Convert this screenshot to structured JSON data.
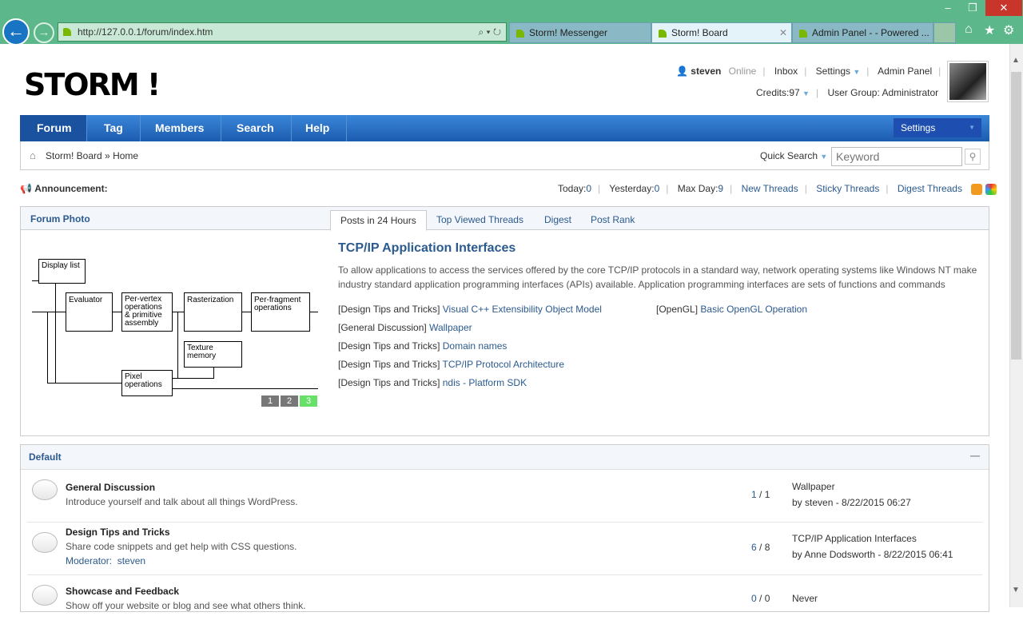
{
  "browser": {
    "url": "http://127.0.0.1/forum/index.htm",
    "tabs": [
      {
        "label": "Storm! Messenger"
      },
      {
        "label": "Storm! Board",
        "active": true
      },
      {
        "label": "Admin Panel - - Powered ..."
      }
    ]
  },
  "site": {
    "logo": "STORM !"
  },
  "user": {
    "name": "steven",
    "status": "Online",
    "inbox": "Inbox",
    "settings": "Settings",
    "admin": "Admin Panel",
    "credits": "Credits:97",
    "group": "User Group: Administrator"
  },
  "nav": {
    "items": [
      "Forum",
      "Tag",
      "Members",
      "Search",
      "Help"
    ],
    "settings": "Settings"
  },
  "breadcrumb": {
    "root": "Storm! Board",
    "sep": "»",
    "current": "Home"
  },
  "quick_search": {
    "label": "Quick Search",
    "placeholder": "Keyword"
  },
  "announcement": {
    "label": "Announcement:",
    "today_label": "Today:",
    "today": "0",
    "yesterday_label": "Yesterday:",
    "yesterday": "0",
    "maxday_label": "Max Day:",
    "maxday": "9",
    "links": [
      "New Threads",
      "Sticky Threads",
      "Digest Threads"
    ]
  },
  "photo": {
    "title": "Forum Photo",
    "diagram": {
      "display": "Display list",
      "evaluator": "Evaluator",
      "pervertex": "Per-vertex operations & primitive assembly",
      "raster": "Rasterization",
      "perfrag": "Per-fragment operations",
      "texture": "Texture memory",
      "pixel": "Pixel operations"
    },
    "pages": [
      "1",
      "2",
      "3"
    ],
    "active_page": "3"
  },
  "posts": {
    "tabs": [
      "Posts in 24 Hours",
      "Top Viewed Threads",
      "Digest",
      "Post Rank"
    ],
    "headline": "TCP/IP Application Interfaces",
    "summary": "To allow applications to access the services offered by the core TCP/IP protocols in a standard way, network operating systems like Windows NT make industry standard application programming interfaces (APIs) available. Application programming interfaces are sets of functions and commands",
    "threads": [
      {
        "cat": "Design Tips and Tricks",
        "title": "Visual C++ Extensibility Object Model"
      },
      {
        "cat": "General Discussion",
        "title": "Wallpaper"
      },
      {
        "cat": "Design Tips and Tricks",
        "title": "Domain names"
      },
      {
        "cat": "Design Tips and Tricks",
        "title": "TCP/IP Protocol Architecture"
      },
      {
        "cat": "Design Tips and Tricks",
        "title": "ndis - Platform SDK"
      },
      {
        "cat": "OpenGL",
        "title": "Basic OpenGL Operation"
      }
    ]
  },
  "default": {
    "title": "Default",
    "collapse": "—",
    "forums": [
      {
        "name": "General Discussion",
        "desc": "Introduce yourself and talk about all things WordPress.",
        "today": "1",
        "total": "/ 1",
        "last": "Wallpaper",
        "by": "by steven - 8/22/2015 06:27"
      },
      {
        "name": "Design Tips and Tricks",
        "desc": "Share code snippets and get help with CSS questions.",
        "mod_label": "Moderator:",
        "mod": "steven",
        "today": "6",
        "total": "/ 8",
        "last": "TCP/IP Application Interfaces",
        "by": "by Anne Dodsworth - 8/22/2015 06:41"
      },
      {
        "name": "Showcase and Feedback",
        "desc": "Show off your website or blog and see what others think.",
        "today": "0",
        "total": "/ 0",
        "last": "Never",
        "by": ""
      }
    ]
  }
}
